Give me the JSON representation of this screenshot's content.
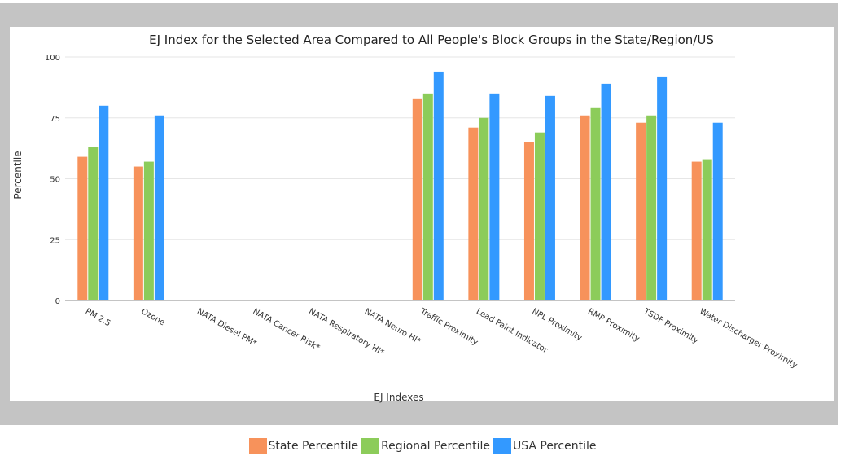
{
  "chart_data": {
    "type": "bar",
    "title": "EJ Index for the Selected Area Compared to All People's Block Groups in the State/Region/US",
    "xlabel": "EJ Indexes",
    "ylabel": "Percentile",
    "ylim": [
      0,
      100
    ],
    "yticks": [
      "0",
      "25",
      "50",
      "75",
      "100"
    ],
    "grid": true,
    "legend_position": "bottom",
    "categories": [
      "PM 2.5",
      "Ozone",
      "NATA Diesel PM*",
      "NATA Cancer Risk*",
      "NATA Respiratory HI*",
      "NATA Neuro HI*",
      "Traffic Proximity",
      "Lead Paint Indicator",
      "NPL Proximity",
      "RMP Proximity",
      "TSDF Proximity",
      "Water Discharger Proximity"
    ],
    "series": [
      {
        "name": "State Percentile",
        "color": "#f7925b",
        "values": [
          59,
          55,
          null,
          null,
          null,
          null,
          83,
          71,
          65,
          76,
          73,
          57
        ]
      },
      {
        "name": "Regional Percentile",
        "color": "#8ccc5a",
        "values": [
          63,
          57,
          null,
          null,
          null,
          null,
          85,
          75,
          69,
          79,
          76,
          58
        ]
      },
      {
        "name": "USA Percentile",
        "color": "#3399ff",
        "values": [
          80,
          76,
          null,
          null,
          null,
          null,
          94,
          85,
          84,
          89,
          92,
          73
        ]
      }
    ]
  }
}
